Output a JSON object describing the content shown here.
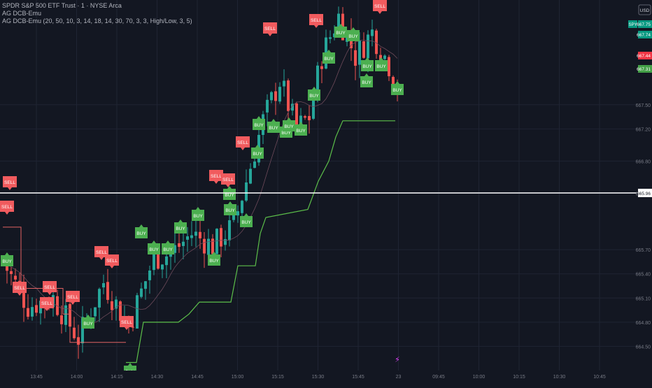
{
  "header": {
    "symbol_line": "SPDR S&P 500 ETF Trust · 1 · NYSE Arca",
    "indicator_line_1": "AG DCB-Emu",
    "indicator_line_2": "AG DCB-Emu (20, 50, 10, 3, 14, 18, 14, 30, 70, 3, 3, High/Low, 3, 5)"
  },
  "currency": "USD",
  "logo_glyph": "⚡",
  "colors": {
    "background": "#131722",
    "grid": "#1f2433",
    "up": "#26a69a",
    "down": "#ef5350",
    "buy": "#4caf50",
    "sell": "#f15b5e",
    "trail": "#5cbf4a",
    "current_line": "#ffffff",
    "axis_text": "#787b86"
  },
  "chart_data": {
    "type": "candlestick",
    "y_range": [
      664.2,
      668.8
    ],
    "y_ticks": [
      "664.50",
      "664.80",
      "665.10",
      "665.40",
      "665.70",
      "666.40",
      "666.80",
      "667.20",
      "667.50"
    ],
    "x_ticks": [
      "13:45",
      "14:00",
      "14:15",
      "14:30",
      "14:45",
      "15:00",
      "15:15",
      "15:30",
      "15:45",
      "23",
      "09:45",
      "10:00",
      "10:15",
      "10:30",
      "10:45"
    ],
    "current_price": "665.96",
    "price_tags": [
      {
        "label": "SPY",
        "value": "667.75",
        "kind": "teal"
      },
      {
        "label": "",
        "value": "667.74",
        "kind": "teal"
      },
      {
        "label": "",
        "value": "667.44",
        "kind": "red"
      },
      {
        "label": "",
        "value": "667.31",
        "kind": "green"
      }
    ],
    "signal_labels": {
      "buy": "BUY",
      "sell": "SELL"
    }
  }
}
